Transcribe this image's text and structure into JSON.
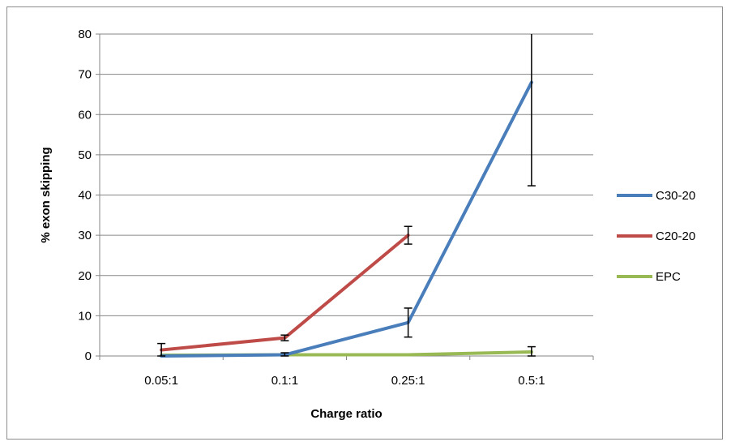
{
  "chart_data": {
    "type": "line",
    "title": "",
    "xlabel": "Charge ratio",
    "ylabel": "% exon skipping",
    "categories": [
      "0.05:1",
      "0.1:1",
      "0.25:1",
      "0.5:1"
    ],
    "ylim": [
      0,
      80
    ],
    "yticks": [
      0,
      10,
      20,
      30,
      40,
      50,
      60,
      70,
      80
    ],
    "grid": "horizontal",
    "legend_position": "right",
    "series": [
      {
        "name": "C30-20",
        "color": "#4a7ebb",
        "values": [
          0,
          0.3,
          8.3,
          68
        ],
        "errors": [
          null,
          0.5,
          3.6,
          25.7
        ]
      },
      {
        "name": "C20-20",
        "color": "#be4b48",
        "values": [
          1.5,
          4.5,
          30,
          null
        ],
        "errors": [
          1.6,
          0.7,
          2.2,
          null
        ]
      },
      {
        "name": "EPC",
        "color": "#98b954",
        "values": [
          0.2,
          0.3,
          0.3,
          1
        ],
        "errors": [
          null,
          null,
          null,
          1.3
        ]
      }
    ]
  }
}
